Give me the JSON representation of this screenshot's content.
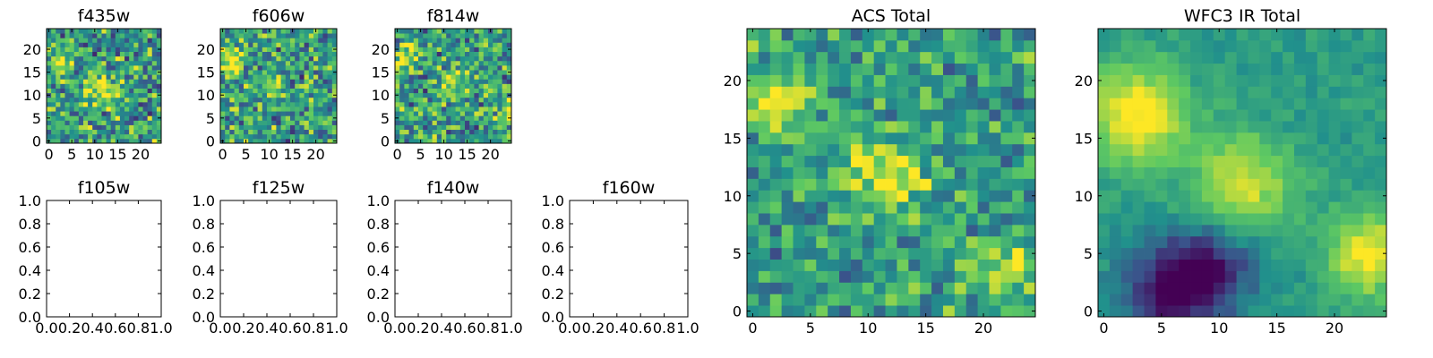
{
  "figure": {
    "background": "#ffffff",
    "colormap": "viridis",
    "colormap_stops": [
      "#440154",
      "#3b528b",
      "#21918c",
      "#5ec962",
      "#fde725"
    ]
  },
  "chart_data": [
    {
      "type": "heatmap",
      "title": "f435w",
      "grid_size": 25,
      "xlim": [
        -0.5,
        24.5
      ],
      "ylim": [
        -0.5,
        24.5
      ],
      "x_ticks": [
        0,
        5,
        10,
        15,
        20
      ],
      "y_ticks": [
        0,
        5,
        10,
        15,
        20
      ],
      "hotspots": [
        {
          "x": 2,
          "y": 17,
          "amplitude": 0.35,
          "sigma": 2.0
        },
        {
          "x": 11,
          "y": 11,
          "amplitude": 0.35,
          "sigma": 2.5
        }
      ],
      "noise": 0.6
    },
    {
      "type": "heatmap",
      "title": "f606w",
      "grid_size": 25,
      "xlim": [
        -0.5,
        24.5
      ],
      "ylim": [
        -0.5,
        24.5
      ],
      "x_ticks": [
        0,
        5,
        10,
        15,
        20
      ],
      "y_ticks": [
        0,
        5,
        10,
        15,
        20
      ],
      "hotspots": [
        {
          "x": 2,
          "y": 18,
          "amplitude": 0.45,
          "sigma": 2.0
        },
        {
          "x": 11,
          "y": 12,
          "amplitude": 0.35,
          "sigma": 2.0
        }
      ],
      "noise": 0.6
    },
    {
      "type": "heatmap",
      "title": "f814w",
      "grid_size": 25,
      "xlim": [
        -0.5,
        24.5
      ],
      "ylim": [
        -0.5,
        24.5
      ],
      "x_ticks": [
        0,
        5,
        10,
        15,
        20
      ],
      "y_ticks": [
        0,
        5,
        10,
        15,
        20
      ],
      "hotspots": [
        {
          "x": 2,
          "y": 18,
          "amplitude": 0.45,
          "sigma": 2.0
        },
        {
          "x": 12,
          "y": 12,
          "amplitude": 0.3,
          "sigma": 2.0
        },
        {
          "x": 24,
          "y": 7,
          "amplitude": 0.3,
          "sigma": 2.0
        }
      ],
      "noise": 0.6
    },
    {
      "type": "heatmap",
      "title": "f105w",
      "empty": true,
      "xlim": [
        0,
        1
      ],
      "ylim": [
        0,
        1
      ],
      "x_ticks": [
        "0.0",
        "0.2",
        "0.4",
        "0.6",
        "0.8",
        "1.0"
      ],
      "y_ticks": [
        "0.0",
        "0.2",
        "0.4",
        "0.6",
        "0.8",
        "1.0"
      ]
    },
    {
      "type": "heatmap",
      "title": "f125w",
      "empty": true,
      "xlim": [
        0,
        1
      ],
      "ylim": [
        0,
        1
      ],
      "x_ticks": [
        "0.0",
        "0.2",
        "0.4",
        "0.6",
        "0.8",
        "1.0"
      ],
      "y_ticks": [
        "0.0",
        "0.2",
        "0.4",
        "0.6",
        "0.8",
        "1.0"
      ]
    },
    {
      "type": "heatmap",
      "title": "f140w",
      "empty": true,
      "xlim": [
        0,
        1
      ],
      "ylim": [
        0,
        1
      ],
      "x_ticks": [
        "0.0",
        "0.2",
        "0.4",
        "0.6",
        "0.8",
        "1.0"
      ],
      "y_ticks": [
        "0.0",
        "0.2",
        "0.4",
        "0.6",
        "0.8",
        "1.0"
      ]
    },
    {
      "type": "heatmap",
      "title": "f160w",
      "empty": true,
      "xlim": [
        0,
        1
      ],
      "ylim": [
        0,
        1
      ],
      "x_ticks": [
        "0.0",
        "0.2",
        "0.4",
        "0.6",
        "0.8",
        "1.0"
      ],
      "y_ticks": [
        "0.0",
        "0.2",
        "0.4",
        "0.6",
        "0.8",
        "1.0"
      ]
    },
    {
      "type": "heatmap",
      "title": "ACS Total",
      "grid_size": 25,
      "xlim": [
        -0.5,
        24.5
      ],
      "ylim": [
        -0.5,
        24.5
      ],
      "x_ticks": [
        0,
        5,
        10,
        15,
        20
      ],
      "y_ticks": [
        0,
        5,
        10,
        15,
        20
      ],
      "hotspots": [
        {
          "x": 2,
          "y": 18,
          "amplitude": 0.45,
          "sigma": 2.0
        },
        {
          "x": 12,
          "y": 12,
          "amplitude": 0.4,
          "sigma": 2.5
        },
        {
          "x": 22,
          "y": 4,
          "amplitude": 0.35,
          "sigma": 1.8
        }
      ],
      "noise": 0.45
    },
    {
      "type": "heatmap",
      "title": "WFC3 IR Total",
      "grid_size": 25,
      "xlim": [
        -0.5,
        24.5
      ],
      "ylim": [
        -0.5,
        24.5
      ],
      "x_ticks": [
        0,
        5,
        10,
        15,
        20
      ],
      "y_ticks": [
        0,
        5,
        10,
        15,
        20
      ],
      "hotspots": [
        {
          "x": 3,
          "y": 17,
          "amplitude": 0.5,
          "sigma": 3.0
        },
        {
          "x": 12,
          "y": 11,
          "amplitude": 0.4,
          "sigma": 3.0
        },
        {
          "x": 23,
          "y": 5,
          "amplitude": 0.45,
          "sigma": 2.5
        },
        {
          "x": 6,
          "y": 2,
          "amplitude": -0.55,
          "sigma": 3.0
        },
        {
          "x": 10,
          "y": 4,
          "amplitude": -0.35,
          "sigma": 2.5
        }
      ],
      "noise": 0.12
    }
  ]
}
